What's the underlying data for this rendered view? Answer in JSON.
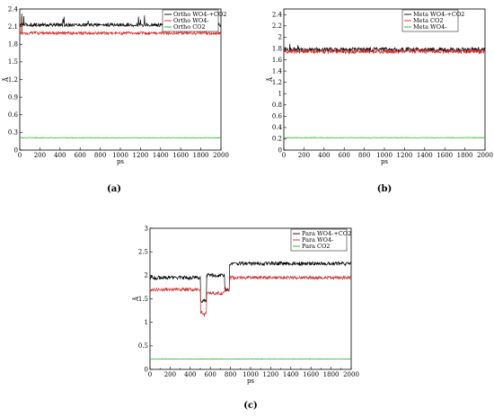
{
  "panel_labels": [
    "(a)",
    "(b)",
    "(c)"
  ],
  "chart_data": [
    {
      "type": "line",
      "panel": "(a)",
      "xlabel": "ps",
      "ylabel": "Å",
      "xlim": [
        0,
        2000
      ],
      "ylim": [
        0,
        2.4
      ],
      "yticks": [
        0,
        0.3,
        0.6,
        0.9,
        1.2,
        1.5,
        1.8,
        2.1,
        2.4,
        2.7
      ],
      "xticks": [
        0,
        200,
        400,
        600,
        800,
        1000,
        1200,
        1400,
        1600,
        1800,
        2000
      ],
      "legend_position": "top-right",
      "series": [
        {
          "name": "Ortho WO4-+CO2",
          "color": "#000000",
          "base": 2.13,
          "noise": 0.03,
          "spikes": [
            [
              20,
              2.32
            ],
            [
              40,
              2.28
            ],
            [
              430,
              2.22
            ],
            [
              440,
              2.27
            ],
            [
              680,
              2.2
            ],
            [
              1180,
              2.27
            ],
            [
              1200,
              2.22
            ],
            [
              1240,
              2.29
            ],
            [
              1640,
              2.23
            ],
            [
              1660,
              2.22
            ]
          ]
        },
        {
          "name": "Ortho WO4-",
          "color": "#cc2b2b",
          "base": 1.99,
          "noise": 0.025,
          "spikes": [
            [
              20,
              2.22
            ]
          ]
        },
        {
          "name": "Ortho CO2",
          "color": "#22b022",
          "base": 0.21,
          "noise": 0.005,
          "spikes": []
        }
      ]
    },
    {
      "type": "line",
      "panel": "(b)",
      "xlabel": "ps",
      "ylabel": "Å",
      "xlim": [
        0,
        2000
      ],
      "ylim": [
        0,
        2.5
      ],
      "yticks": [
        0,
        0.2,
        0.4,
        0.6,
        0.8,
        1,
        1.2,
        1.4,
        1.6,
        1.8,
        2,
        2.2,
        2.4
      ],
      "xticks": [
        0,
        200,
        400,
        600,
        800,
        1000,
        1200,
        1400,
        1600,
        1800,
        2000
      ],
      "legend_position": "top-right",
      "series": [
        {
          "name": "Meta WO4-+CO2",
          "color": "#000000",
          "base": 1.78,
          "noise": 0.04,
          "spikes": [
            [
              60,
              1.88
            ],
            [
              140,
              1.86
            ]
          ]
        },
        {
          "name": "Meta CO2",
          "color": "#cc2b2b",
          "base": 1.75,
          "noise": 0.04,
          "spikes": []
        },
        {
          "name": "Meta WO4-",
          "color": "#22b022",
          "base": 0.22,
          "noise": 0.005,
          "spikes": []
        }
      ]
    },
    {
      "type": "line",
      "panel": "(c)",
      "xlabel": "ps",
      "ylabel": "Å",
      "xlim": [
        0,
        2000
      ],
      "ylim": [
        0,
        3
      ],
      "yticks": [
        0,
        0.5,
        1,
        1.5,
        2,
        2.5,
        3
      ],
      "xticks": [
        0,
        100,
        200,
        300,
        400,
        500,
        600,
        700,
        800,
        900,
        1000,
        1100,
        1200,
        1300,
        1400,
        1500,
        1600,
        1700,
        1800,
        1900,
        2000
      ],
      "xticklabels": [
        "0",
        "",
        "200",
        "",
        "400",
        "",
        "600",
        "",
        "800",
        "",
        "1000",
        "",
        "1200",
        "",
        "1400",
        "",
        "1600",
        "",
        "1800",
        "",
        "2000"
      ],
      "legend_position": "top-right",
      "series": [
        {
          "name": "Para WO4-+CO2",
          "color": "#000000",
          "segments": [
            [
              0,
              500,
              1.95
            ],
            [
              500,
              560,
              1.45
            ],
            [
              560,
              740,
              2.0
            ],
            [
              740,
              790,
              1.7
            ],
            [
              790,
              2000,
              2.25
            ]
          ],
          "noise": 0.04,
          "spikes": []
        },
        {
          "name": "Para WO4-",
          "color": "#cc2b2b",
          "segments": [
            [
              0,
              500,
              1.7
            ],
            [
              500,
              560,
              1.2
            ],
            [
              560,
              740,
              1.62
            ],
            [
              740,
              790,
              1.7
            ],
            [
              790,
              2000,
              1.95
            ]
          ],
          "noise": 0.035,
          "spikes": [
            [
              540,
              1.12
            ]
          ]
        },
        {
          "name": "Para CO2",
          "color": "#22b022",
          "base": 0.22,
          "noise": 0.005,
          "spikes": []
        }
      ]
    }
  ]
}
